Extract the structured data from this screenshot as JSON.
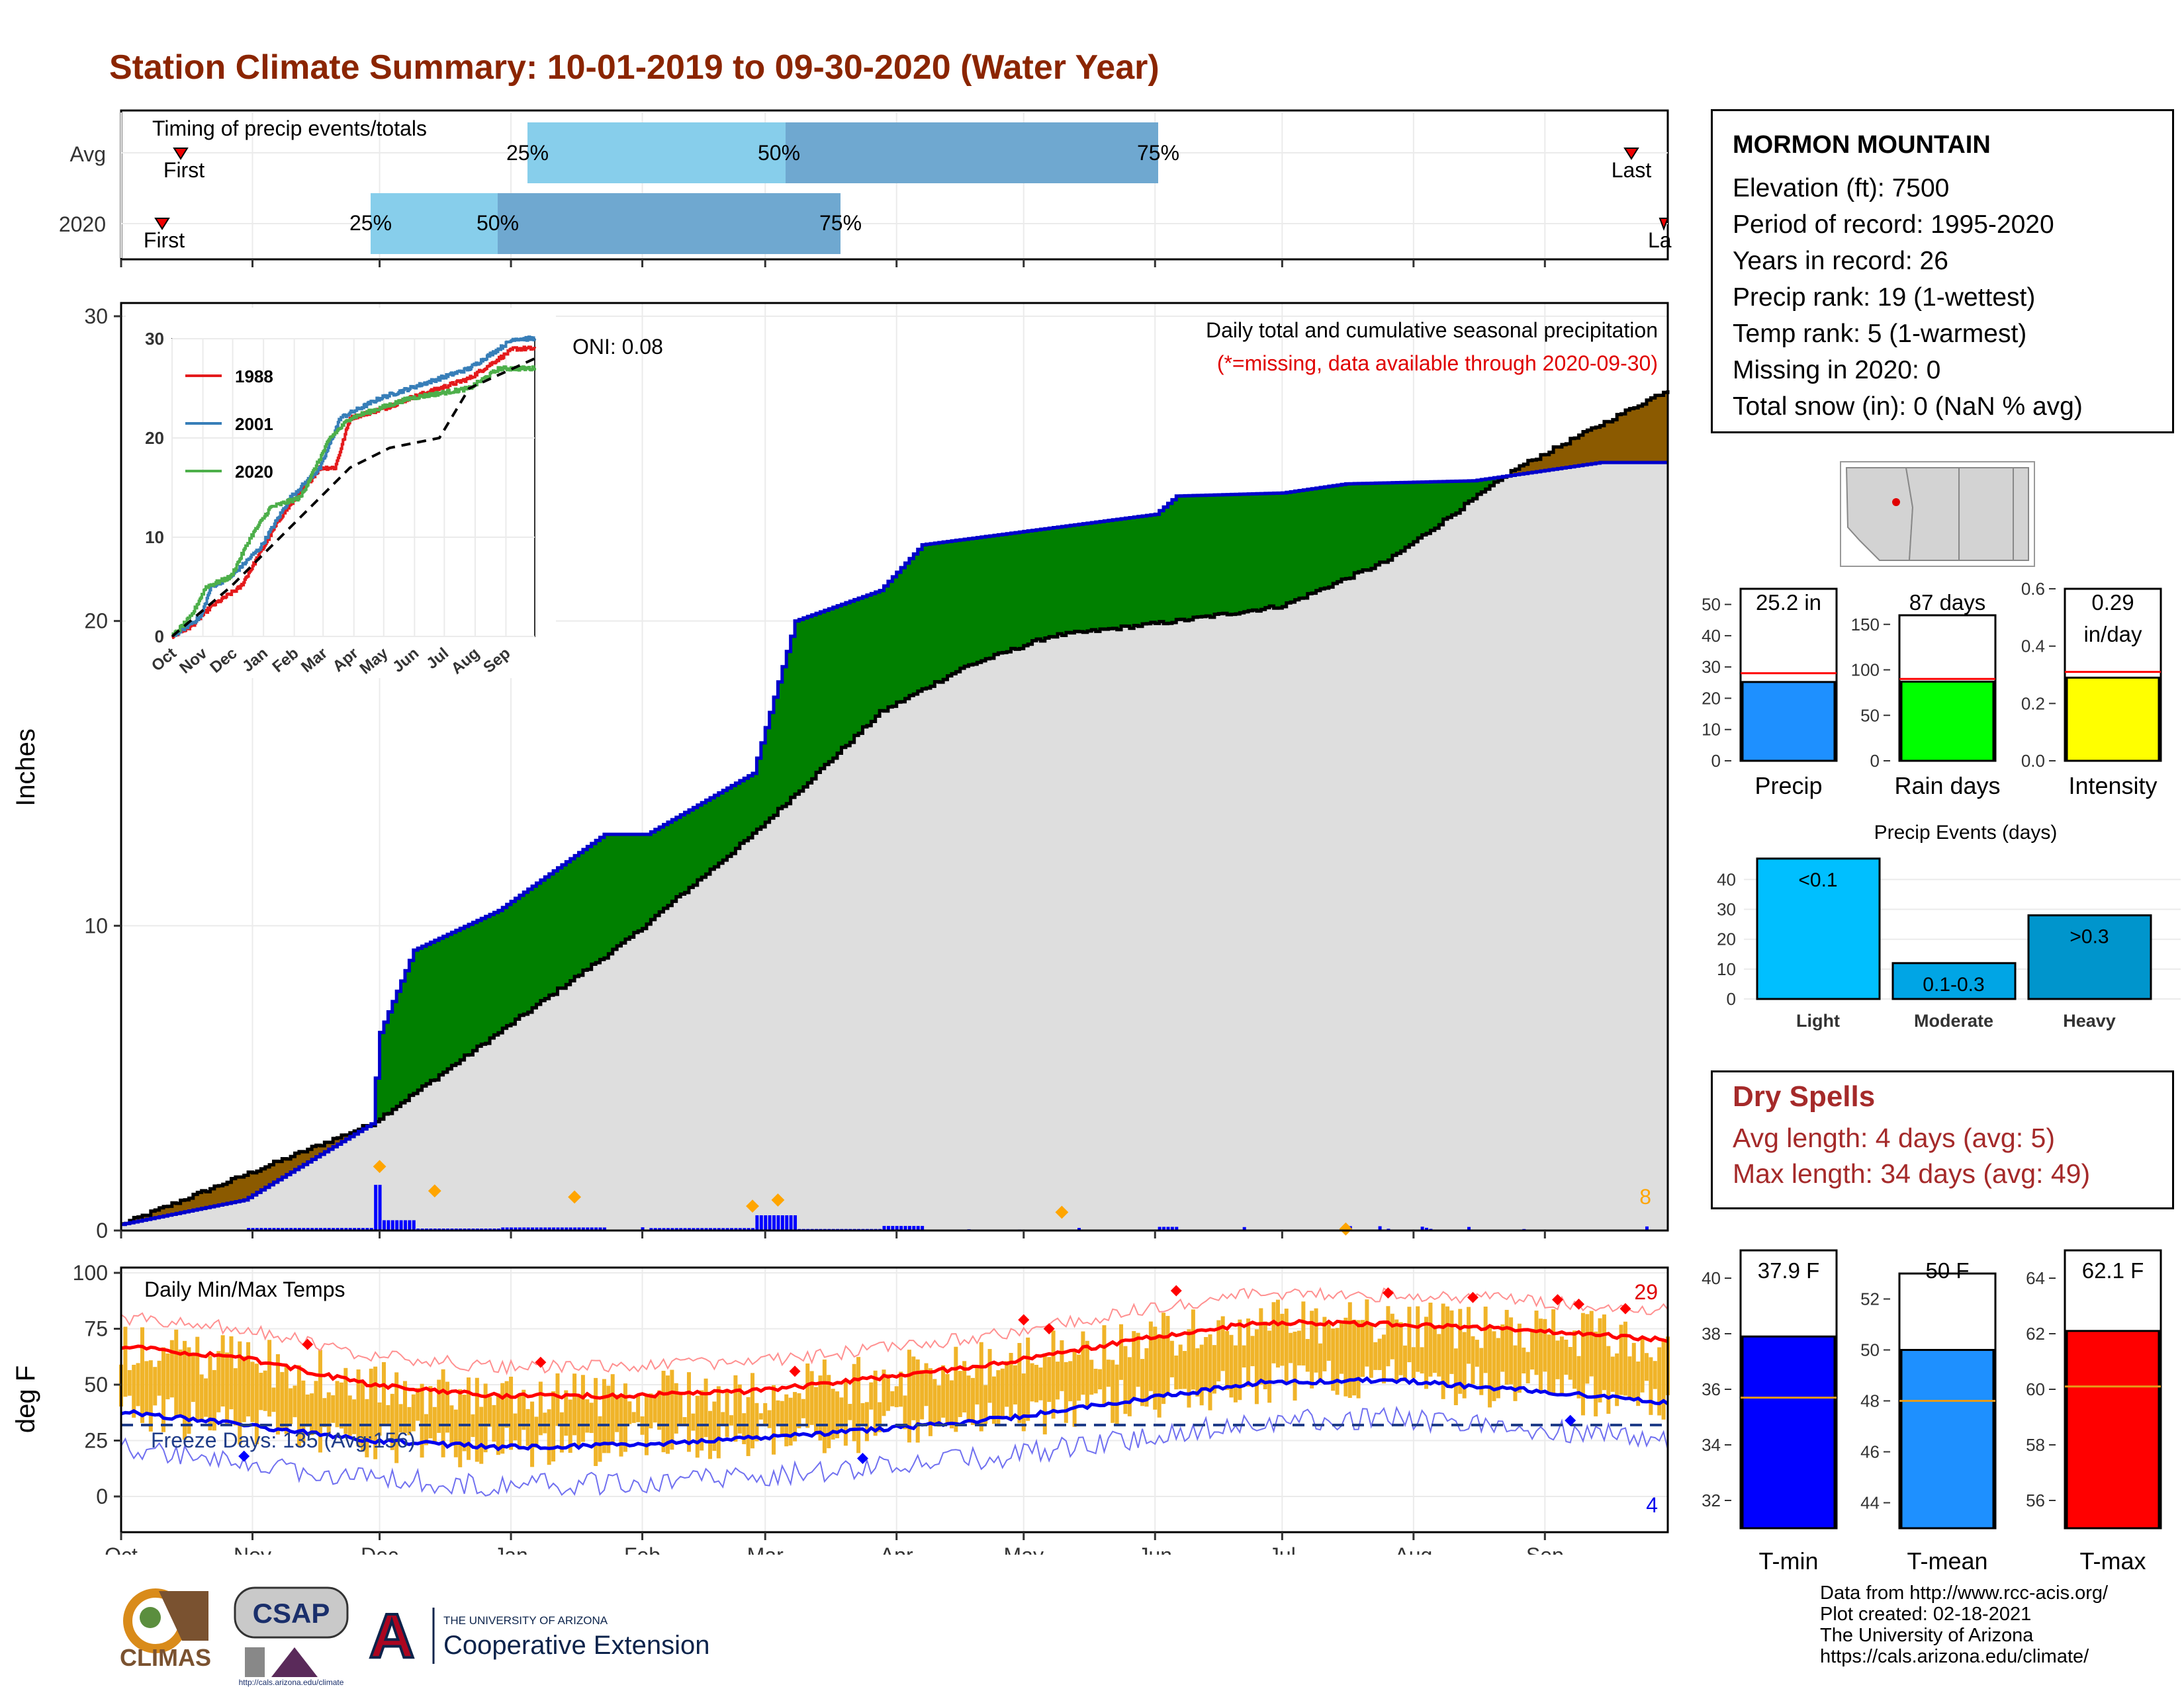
{
  "title": "Station Climate Summary: 10-01-2019 to 09-30-2020 (Water Year)",
  "timing": {
    "label": "Timing of precip events/totals",
    "rows": [
      "Avg",
      "2020"
    ],
    "first_label": "First",
    "last_label": "Last",
    "last_label_cut": "La",
    "pct_labels": [
      "25%",
      "50%",
      "75%"
    ]
  },
  "main": {
    "ylabel": "Inches",
    "yticks": [
      "0",
      "10",
      "20",
      "30"
    ],
    "months": [
      "Oct",
      "Nov",
      "Dec",
      "Jan",
      "Feb",
      "Mar",
      "Apr",
      "May",
      "Jun",
      "Jul",
      "Aug",
      "Sep"
    ],
    "oni": "ONI: 0.08",
    "caption": "Daily total and cumulative seasonal precipitation",
    "missing_note": "(*=missing, data available through 2020-09-30)",
    "extreme_count": "8"
  },
  "inset": {
    "yticks": [
      "0",
      "10",
      "20",
      "30"
    ],
    "months": [
      "Oct",
      "Nov",
      "Dec",
      "Jan",
      "Feb",
      "Mar",
      "Apr",
      "May",
      "Jun",
      "Jul",
      "Aug",
      "Sep"
    ],
    "legend": [
      "1988",
      "2001",
      "2020"
    ],
    "colors": [
      "#E41A1C",
      "#377EB8",
      "#4DAF4A"
    ]
  },
  "temps": {
    "label": "Daily Min/Max Temps",
    "ylabel": "deg F",
    "yticks": [
      "0",
      "25",
      "50",
      "75",
      "100"
    ],
    "freeze": "Freeze Days: 135 (Avg:156)",
    "hot_count": "29",
    "cold_count": "4"
  },
  "station": {
    "name": "MORMON MOUNTAIN",
    "lines": [
      "Elevation (ft): 7500",
      "Period of record: 1995-2020",
      "Years in record: 26",
      "Precip rank: 19 (1-wettest)",
      "Temp rank: 5 (1-warmest)",
      "Missing in 2020: 0",
      "Total snow (in): 0 (NaN % avg)"
    ]
  },
  "bars_precip": [
    {
      "label": "Precip",
      "value_text": "25.2 in",
      "value": 25.2,
      "avg": 28,
      "max": 55,
      "ticks": [
        "0",
        "10",
        "20",
        "30",
        "40",
        "50"
      ],
      "color": "#1E90FF"
    },
    {
      "label": "Rain days",
      "value_text": "87 days",
      "value": 87,
      "avg": 90,
      "max": 160,
      "ticks": [
        "0",
        "50",
        "100",
        "150"
      ],
      "color": "#00FF00"
    },
    {
      "label": "Intensity",
      "value_text": "0.29",
      "value_text2": "in/day",
      "value": 0.29,
      "avg": 0.31,
      "max": 0.6,
      "ticks": [
        "0.0",
        "0.2",
        "0.4",
        "0.6"
      ],
      "color": "#FFFF00"
    }
  ],
  "events": {
    "title": "Precip Events (days)",
    "yticks": [
      "0",
      "10",
      "20",
      "30",
      "40"
    ],
    "bars": [
      {
        "cat": "Light",
        "label": "<0.1",
        "value": 47
      },
      {
        "cat": "Moderate",
        "label": "0.1-0.3",
        "value": 12
      },
      {
        "cat": "Heavy",
        "label": ">0.3",
        "value": 28
      }
    ],
    "colors": [
      "#00BFFF",
      "#00A5E5",
      "#0095CC"
    ]
  },
  "dry_spells": {
    "title": "Dry Spells",
    "lines": [
      "Avg length: 4 days (avg: 5)",
      "Max length: 34 days (avg: 49)"
    ]
  },
  "bars_temp": [
    {
      "label": "T-min",
      "value_text": "37.9 F",
      "value": 37.9,
      "avg": 35.7,
      "min": 31,
      "max": 41,
      "ticks": [
        "32",
        "34",
        "36",
        "38",
        "40"
      ],
      "color": "#0000FF"
    },
    {
      "label": "T-mean",
      "value_text": "50 F",
      "value": 50.0,
      "avg": 48.0,
      "min": 43,
      "max": 53,
      "ticks": [
        "44",
        "46",
        "48",
        "50",
        "52"
      ],
      "color": "#1E90FF"
    },
    {
      "label": "T-max",
      "value_text": "62.1 F",
      "value": 62.1,
      "avg": 60.1,
      "min": 55,
      "max": 65,
      "ticks": [
        "56",
        "58",
        "60",
        "62",
        "64"
      ],
      "color": "#FF0000"
    }
  ],
  "footer": [
    "Data from http://www.rcc-acis.org/",
    "Plot created: 02-18-2021",
    "The University of Arizona",
    "https://cals.arizona.edu/climate/"
  ],
  "logos": {
    "climas": "CLIMAS",
    "csap": "CSAP",
    "csap_url": "http://cals.arizona.edu/climate",
    "ua_a": "A",
    "ua_small": "THE UNIVERSITY OF ARIZONA",
    "ua_big": "Cooperative Extension"
  },
  "chart_data": [
    {
      "type": "area",
      "title": "Daily total and cumulative seasonal precipitation",
      "ylabel": "Inches",
      "ylim": [
        0,
        30
      ],
      "x_unit": "day of water year",
      "series": [
        {
          "name": "2020 cumulative",
          "x": [
            1,
            30,
            60,
            62,
            70,
            90,
            115,
            125,
            150,
            160,
            180,
            190,
            245,
            250,
            275,
            290,
            320,
            340,
            350,
            366
          ],
          "values": [
            0.2,
            1.0,
            3.5,
            6.5,
            9.2,
            10.5,
            13.0,
            13.0,
            15.0,
            20.0,
            21.0,
            22.5,
            23.5,
            24.1,
            24.2,
            24.5,
            24.6,
            25.0,
            25.2,
            25.2
          ]
        },
        {
          "name": "average cumulative",
          "x": [
            1,
            60,
            90,
            120,
            150,
            180,
            200,
            220,
            250,
            275,
            300,
            330,
            366
          ],
          "values": [
            0.2,
            3.5,
            6.5,
            9.5,
            13.0,
            17.0,
            18.5,
            19.5,
            20.0,
            20.5,
            22.0,
            25.0,
            27.6
          ]
        }
      ]
    },
    {
      "type": "line",
      "title": "Daily Min/Max Temps",
      "ylabel": "deg F",
      "ylim": [
        -15,
        100
      ],
      "series": [
        {
          "name": "avg max",
          "x": [
            1,
            30,
            60,
            90,
            120,
            150,
            180,
            210,
            240,
            270,
            300,
            330,
            366
          ],
          "values": [
            67,
            62,
            50,
            45,
            45,
            47,
            53,
            60,
            70,
            78,
            77,
            75,
            70
          ]
        },
        {
          "name": "avg min",
          "x": [
            1,
            30,
            60,
            90,
            120,
            150,
            180,
            210,
            240,
            270,
            300,
            330,
            366
          ],
          "values": [
            38,
            32,
            25,
            22,
            23,
            26,
            30,
            35,
            43,
            51,
            52,
            48,
            42
          ]
        }
      ]
    }
  ]
}
